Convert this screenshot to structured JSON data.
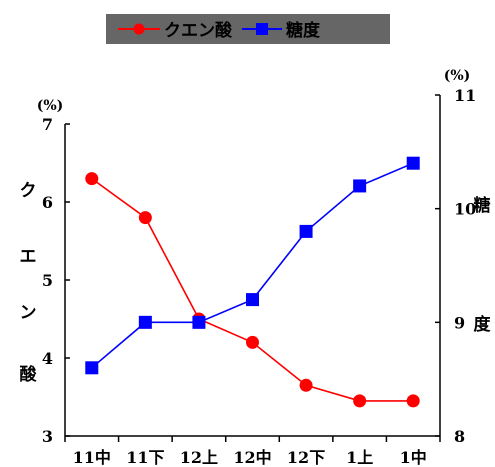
{
  "chart_data": {
    "type": "line",
    "categories": [
      "11中",
      "11下",
      "12上",
      "12中",
      "12下",
      "1上",
      "1中"
    ],
    "series": [
      {
        "name": "クエン酸",
        "axis": "left",
        "color": "#ff0000",
        "marker": "circle",
        "values": [
          6.3,
          5.8,
          4.5,
          4.2,
          3.65,
          3.45,
          3.45
        ]
      },
      {
        "name": "糖度",
        "axis": "right",
        "color": "#0000ff",
        "marker": "square",
        "values": [
          8.6,
          9.0,
          9.0,
          9.2,
          9.8,
          10.2,
          10.4
        ]
      }
    ],
    "y_left": {
      "label_chars": [
        "ク",
        "エ",
        "ン",
        "酸"
      ],
      "unit": "(%)",
      "ylim": [
        3,
        7
      ],
      "ticks": [
        3,
        4,
        5,
        6,
        7
      ]
    },
    "y_right": {
      "label_chars": [
        "糖",
        "度"
      ],
      "unit": "(%)",
      "ylim": [
        8,
        11
      ],
      "ticks": [
        8,
        9,
        10,
        11
      ]
    },
    "legend": {
      "placement": "top-center",
      "background": "#666666",
      "entries": [
        "クエン酸",
        "糖度"
      ]
    },
    "grid": false
  }
}
